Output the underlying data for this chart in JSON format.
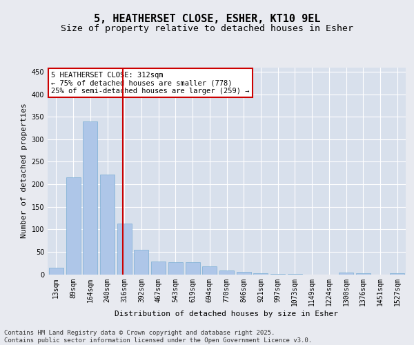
{
  "title": "5, HEATHERSET CLOSE, ESHER, KT10 9EL",
  "subtitle": "Size of property relative to detached houses in Esher",
  "xlabel": "Distribution of detached houses by size in Esher",
  "ylabel": "Number of detached properties",
  "categories": [
    "13sqm",
    "89sqm",
    "164sqm",
    "240sqm",
    "316sqm",
    "392sqm",
    "467sqm",
    "543sqm",
    "619sqm",
    "694sqm",
    "770sqm",
    "846sqm",
    "921sqm",
    "997sqm",
    "1073sqm",
    "1149sqm",
    "1224sqm",
    "1300sqm",
    "1376sqm",
    "1451sqm",
    "1527sqm"
  ],
  "values": [
    15,
    216,
    339,
    222,
    113,
    54,
    28,
    27,
    27,
    18,
    9,
    6,
    2,
    1,
    1,
    0,
    0,
    4,
    2,
    0,
    3
  ],
  "bar_color": "#aec6e8",
  "bar_edge_color": "#7aaed4",
  "vline_color": "#cc0000",
  "vline_index": 4,
  "annotation_text": "5 HEATHERSET CLOSE: 312sqm\n← 75% of detached houses are smaller (778)\n25% of semi-detached houses are larger (259) →",
  "annotation_box_color": "#cc0000",
  "annotation_text_color": "#000000",
  "ylim": [
    0,
    460
  ],
  "yticks": [
    0,
    50,
    100,
    150,
    200,
    250,
    300,
    350,
    400,
    450
  ],
  "bg_color": "#e8eaf0",
  "plot_bg_color": "#d8e0ec",
  "footer": "Contains HM Land Registry data © Crown copyright and database right 2025.\nContains public sector information licensed under the Open Government Licence v3.0.",
  "title_fontsize": 11,
  "subtitle_fontsize": 9.5,
  "xlabel_fontsize": 8,
  "ylabel_fontsize": 8,
  "tick_fontsize": 7,
  "annotation_fontsize": 7.5,
  "footer_fontsize": 6.5
}
